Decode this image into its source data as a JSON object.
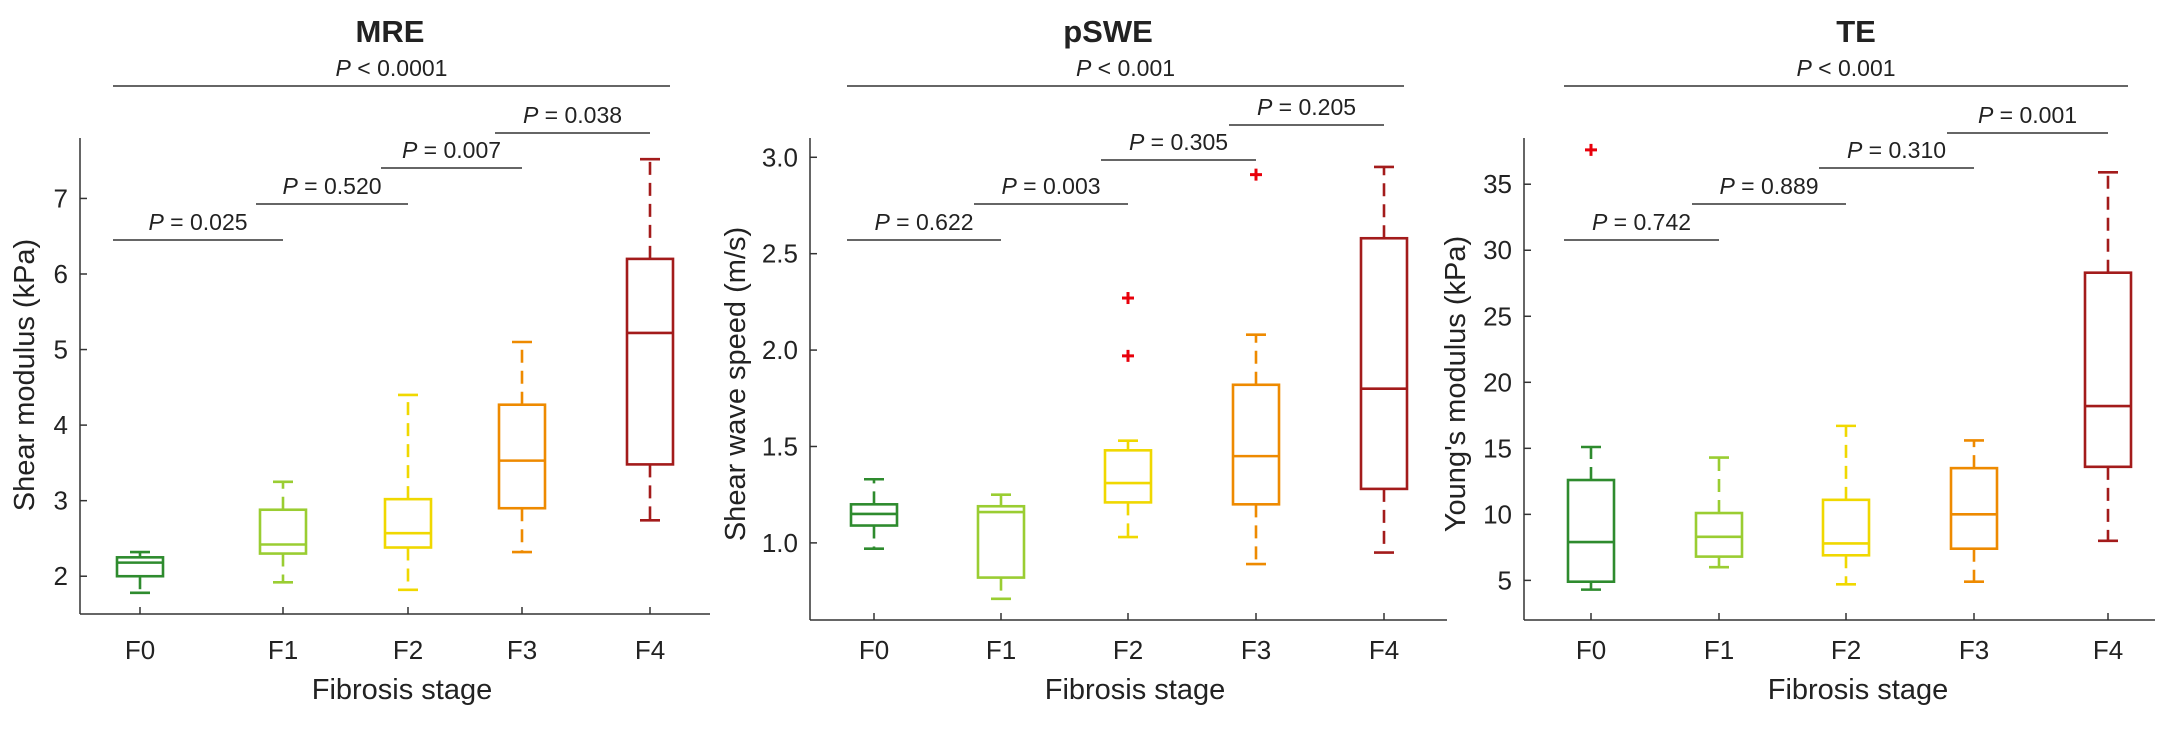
{
  "chart_data": [
    {
      "type": "box",
      "title": "MRE",
      "xlabel": "Fibrosis stage",
      "ylabel": "Shear modulus (kPa)",
      "categories": [
        "F0",
        "F1",
        "F2",
        "F3",
        "F4"
      ],
      "ylim": [
        1.5,
        7.8
      ],
      "yticks": [
        2,
        3,
        4,
        5,
        6,
        7
      ],
      "ytick_labels": [
        "2",
        "3",
        "4",
        "5",
        "6",
        "7"
      ],
      "boxes": [
        {
          "category": "F0",
          "whisker_low": 1.78,
          "q1": 2.0,
          "median": 2.18,
          "q3": 2.25,
          "whisker_high": 2.32,
          "outliers": []
        },
        {
          "category": "F1",
          "whisker_low": 1.92,
          "q1": 2.3,
          "median": 2.42,
          "q3": 2.88,
          "whisker_high": 3.25,
          "outliers": []
        },
        {
          "category": "F2",
          "whisker_low": 1.82,
          "q1": 2.38,
          "median": 2.57,
          "q3": 3.02,
          "whisker_high": 4.4,
          "outliers": []
        },
        {
          "category": "F3",
          "whisker_low": 2.32,
          "q1": 2.9,
          "median": 3.53,
          "q3": 4.27,
          "whisker_high": 5.1,
          "outliers": []
        },
        {
          "category": "F4",
          "whisker_low": 2.74,
          "q1": 3.48,
          "median": 5.22,
          "q3": 6.2,
          "whisker_high": 7.52,
          "outliers": []
        }
      ],
      "comparisons": [
        {
          "from": "F0",
          "to": "F1",
          "label": "P = 0.025",
          "y": 6.45
        },
        {
          "from": "F1",
          "to": "F2",
          "label": "P = 0.520",
          "y": 6.9
        },
        {
          "from": "F2",
          "to": "F3",
          "label": "P = 0.007",
          "y": 7.37
        },
        {
          "from": "F3",
          "to": "F4",
          "label": "P = 0.038",
          "y": 7.82
        },
        {
          "from": "F0",
          "to": "F4",
          "label": "P < 0.0001",
          "y": 8.47
        }
      ]
    },
    {
      "type": "box",
      "title": "pSWE",
      "xlabel": "Fibrosis stage",
      "ylabel": "Shear wave speed (m/s)",
      "categories": [
        "F0",
        "F1",
        "F2",
        "F3",
        "F4"
      ],
      "ylim": [
        0.6,
        3.1
      ],
      "yticks": [
        1.0,
        1.5,
        2.0,
        2.5,
        3.0
      ],
      "ytick_labels": [
        "1.0",
        "1.5",
        "2.0",
        "2.5",
        "3.0"
      ],
      "boxes": [
        {
          "category": "F0",
          "whisker_low": 0.97,
          "q1": 1.09,
          "median": 1.15,
          "q3": 1.2,
          "whisker_high": 1.33,
          "outliers": []
        },
        {
          "category": "F1",
          "whisker_low": 0.71,
          "q1": 0.82,
          "median": 1.16,
          "q3": 1.19,
          "whisker_high": 1.25,
          "outliers": []
        },
        {
          "category": "F2",
          "whisker_low": 1.03,
          "q1": 1.21,
          "median": 1.31,
          "q3": 1.48,
          "whisker_high": 1.53,
          "outliers": [
            1.97,
            2.27
          ]
        },
        {
          "category": "F3",
          "whisker_low": 0.89,
          "q1": 1.2,
          "median": 1.45,
          "q3": 1.82,
          "whisker_high": 2.08,
          "outliers": [
            2.91
          ]
        },
        {
          "category": "F4",
          "whisker_low": 0.95,
          "q1": 1.28,
          "median": 1.8,
          "q3": 2.58,
          "whisker_high": 2.95,
          "outliers": []
        }
      ],
      "comparisons": [
        {
          "from": "F0",
          "to": "F1",
          "label": "P = 0.622",
          "y": 2.55
        },
        {
          "from": "F1",
          "to": "F2",
          "label": "P = 0.003",
          "y": 2.75
        },
        {
          "from": "F2",
          "to": "F3",
          "label": "P = 0.305",
          "y": 2.97
        },
        {
          "from": "F3",
          "to": "F4",
          "label": "P = 0.205",
          "y": 3.15
        },
        {
          "from": "F0",
          "to": "F4",
          "label": "P < 0.001",
          "y": 3.39
        }
      ]
    },
    {
      "type": "box",
      "title": "TE",
      "xlabel": "Fibrosis stage",
      "ylabel": "Young's modulus (kPa)",
      "categories": [
        "F0",
        "F1",
        "F2",
        "F3",
        "F4"
      ],
      "ylim": [
        2,
        38.5
      ],
      "yticks": [
        5,
        10,
        15,
        20,
        25,
        30,
        35
      ],
      "ytick_labels": [
        "5",
        "10",
        "15",
        "20",
        "25",
        "30",
        "35"
      ],
      "boxes": [
        {
          "category": "F0",
          "whisker_low": 4.3,
          "q1": 4.9,
          "median": 7.9,
          "q3": 12.6,
          "whisker_high": 15.1,
          "outliers": [
            37.6
          ]
        },
        {
          "category": "F1",
          "whisker_low": 6.0,
          "q1": 6.8,
          "median": 8.3,
          "q3": 10.1,
          "whisker_high": 14.3,
          "outliers": []
        },
        {
          "category": "F2",
          "whisker_low": 4.7,
          "q1": 6.9,
          "median": 7.8,
          "q3": 11.1,
          "whisker_high": 16.7,
          "outliers": []
        },
        {
          "category": "F3",
          "whisker_low": 4.9,
          "q1": 7.4,
          "median": 10.0,
          "q3": 13.5,
          "whisker_high": 15.6,
          "outliers": []
        },
        {
          "category": "F4",
          "whisker_low": 8.0,
          "q1": 13.6,
          "median": 18.2,
          "q3": 28.3,
          "whisker_high": 35.9,
          "outliers": []
        }
      ],
      "comparisons": [
        {
          "from": "F0",
          "to": "F1",
          "label": "P = 0.742",
          "y": 31.5
        },
        {
          "from": "F1",
          "to": "F2",
          "label": "P = 0.889",
          "y": 34.2
        },
        {
          "from": "F2",
          "to": "F3",
          "label": "P = 0.310",
          "y": 36.9
        },
        {
          "from": "F3",
          "to": "F4",
          "label": "P = 0.001",
          "y": 39.6
        },
        {
          "from": "F0",
          "to": "F4",
          "label": "P < 0.001",
          "y": 42.3
        }
      ]
    }
  ],
  "colors": {
    "F0": "#2e8b2e",
    "F1": "#9acd32",
    "F2": "#f0d800",
    "F3": "#ee8a00",
    "F4": "#a31b1b",
    "outlier": "#e8000b",
    "axis": "#333333"
  }
}
